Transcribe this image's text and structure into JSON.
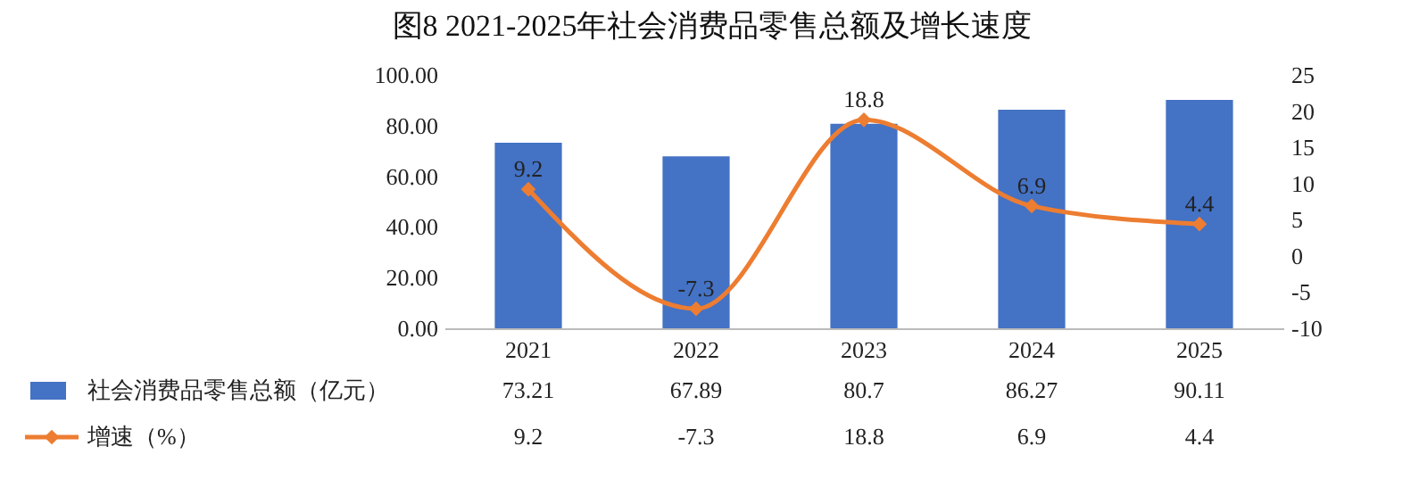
{
  "chart_data": {
    "type": "bar",
    "title": "图8  2021-2025年社会消费品零售总额及增长速度",
    "categories": [
      "2021",
      "2022",
      "2023",
      "2024",
      "2025"
    ],
    "series": [
      {
        "name": "社会消费品零售总额（亿元）",
        "color": "#4472c4",
        "values": [
          73.21,
          67.89,
          80.7,
          86.27,
          90.11
        ]
      },
      {
        "name": "增速（%）",
        "type": "line",
        "axis": "y2",
        "color": "#ed7d31",
        "values": [
          9.2,
          -7.3,
          18.8,
          6.9,
          4.4
        ],
        "value_labels": [
          "9.2",
          "-7.3",
          "18.8",
          "6.9",
          "4.4"
        ]
      }
    ],
    "ylim": [
      0,
      100
    ],
    "yticks": [
      {
        "value": 0,
        "label": "0.00"
      },
      {
        "value": 20,
        "label": "20.00"
      },
      {
        "value": 40,
        "label": "40.00"
      },
      {
        "value": 60,
        "label": "60.00"
      },
      {
        "value": 80,
        "label": "80.00"
      },
      {
        "value": 100,
        "label": "100.00"
      }
    ],
    "y2lim": [
      -10,
      25
    ],
    "y2ticks": [
      -10,
      -5,
      0,
      5,
      10,
      15,
      20,
      25
    ],
    "data_labels": true,
    "legend": "bottom",
    "marker": "diamond",
    "grid": false
  }
}
